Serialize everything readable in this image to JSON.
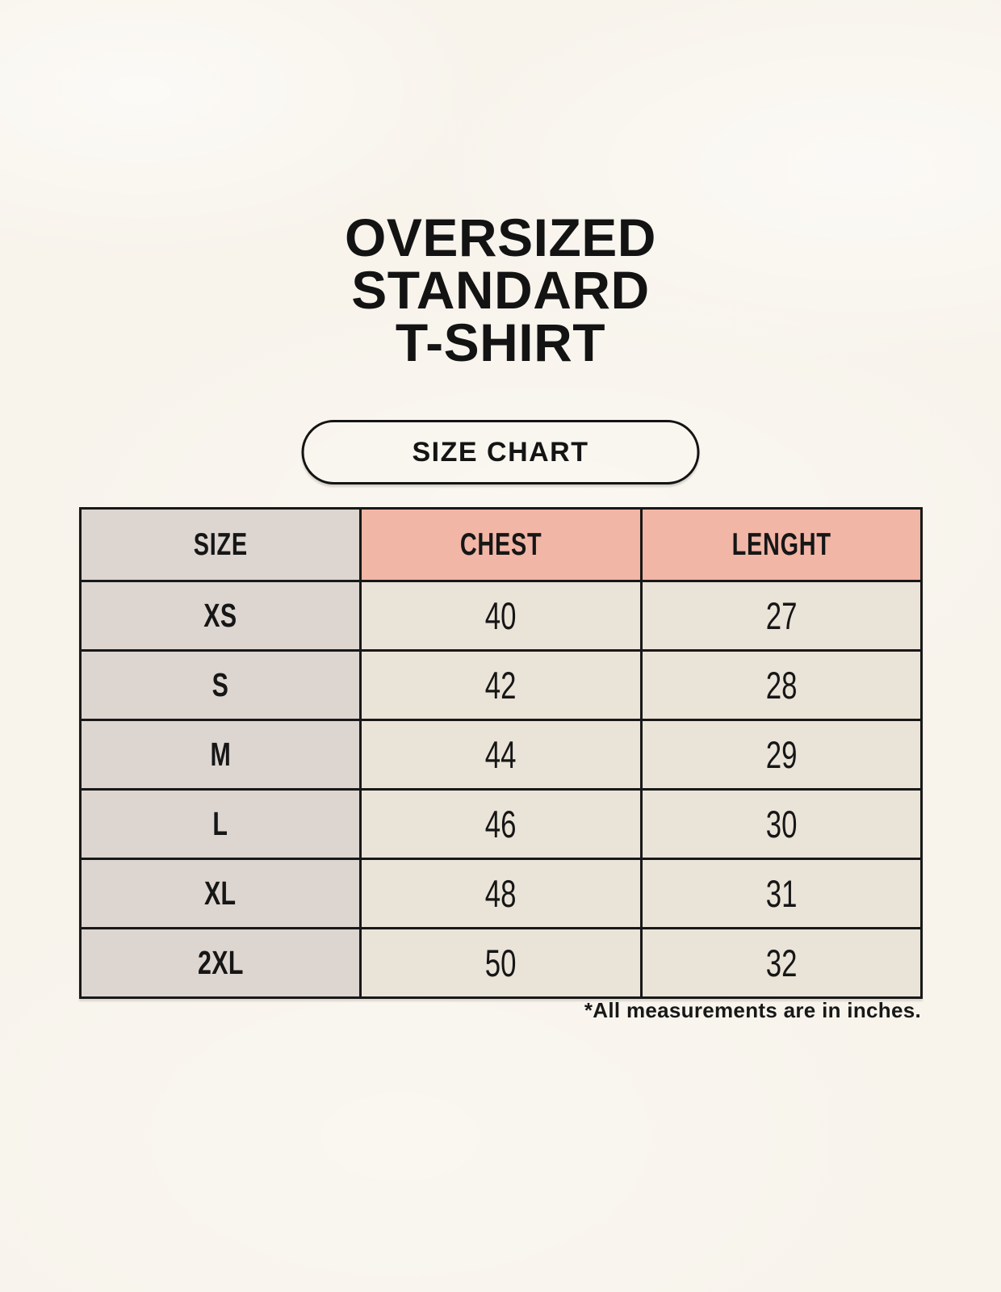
{
  "theme": {
    "bg": "#f8f4ec",
    "cell_gray": "#dcd5d0",
    "cell_pink": "#f1b6a6",
    "cell_cream": "#eae3d8",
    "border": "#181818",
    "text": "#161616"
  },
  "title": {
    "lines": [
      "OVERSIZED",
      "STANDARD",
      "T-SHIRT"
    ]
  },
  "size_chart_button": {
    "label": "SIZE CHART"
  },
  "table": {
    "columns": [
      {
        "label": "SIZE"
      },
      {
        "label": "CHEST"
      },
      {
        "label": "LENGHT"
      }
    ],
    "rows": [
      {
        "size": "XS",
        "chest": "40",
        "length": "27"
      },
      {
        "size": "S",
        "chest": "42",
        "length": "28"
      },
      {
        "size": "M",
        "chest": "44",
        "length": "29"
      },
      {
        "size": "L",
        "chest": "46",
        "length": "30"
      },
      {
        "size": "XL",
        "chest": "48",
        "length": "31"
      },
      {
        "size": "2XL",
        "chest": "50",
        "length": "32"
      }
    ]
  },
  "footnote": "*All measurements are in inches."
}
